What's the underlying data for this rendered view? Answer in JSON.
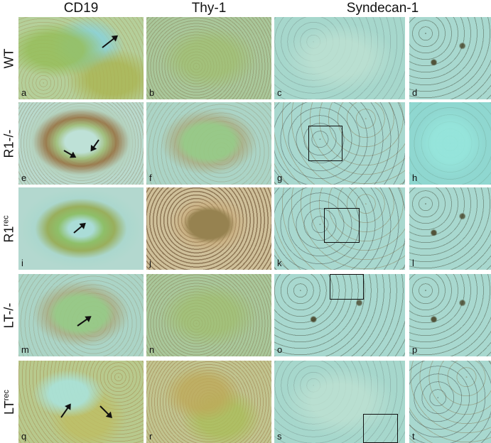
{
  "columns": [
    "CD19",
    "Thy-1",
    "Syndecan-1"
  ],
  "rows": [
    {
      "label": "WT",
      "sup": ""
    },
    {
      "label": "R1-/-",
      "sup": ""
    },
    {
      "label": "R1",
      "sup": "rec"
    },
    {
      "label": "LT-/-",
      "sup": ""
    },
    {
      "label": "LT",
      "sup": "rec"
    }
  ],
  "panels": [
    {
      "label": "a",
      "texture": "green-nodule"
    },
    {
      "label": "b",
      "texture": "green-speckle"
    },
    {
      "label": "c",
      "texture": "cyan"
    },
    {
      "label": "d",
      "texture": "dark-spots"
    },
    {
      "label": "e",
      "texture": "ring"
    },
    {
      "label": "f",
      "texture": "blob"
    },
    {
      "label": "g",
      "texture": "dots"
    },
    {
      "label": "h",
      "texture": "cyan-bright"
    },
    {
      "label": "i",
      "texture": "ring-green"
    },
    {
      "label": "j",
      "texture": "dense-brown"
    },
    {
      "label": "k",
      "texture": "dots"
    },
    {
      "label": "l",
      "texture": "dark-spots"
    },
    {
      "label": "m",
      "texture": "blob"
    },
    {
      "label": "n",
      "texture": "green-speckle"
    },
    {
      "label": "o",
      "texture": "dark-spots"
    },
    {
      "label": "p",
      "texture": "dark-spots"
    },
    {
      "label": "q",
      "texture": "q"
    },
    {
      "label": "r",
      "texture": "r"
    },
    {
      "label": "s",
      "texture": "cyan"
    },
    {
      "label": "t",
      "texture": "dots"
    }
  ]
}
